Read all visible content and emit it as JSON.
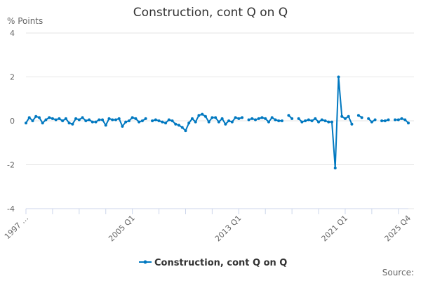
{
  "chart_data": {
    "type": "line",
    "title": "Construction, cont Q on Q",
    "ylabel": "% Points",
    "source_label": "Source:",
    "ylim": [
      -4,
      4
    ],
    "yticks": [
      4,
      2,
      0,
      -2,
      -4
    ],
    "grid": true,
    "legend_position": "bottom",
    "x_start": "1997 Q1",
    "x_end": "2025 Q4",
    "xtick_labels": [
      {
        "index": 0,
        "label": "1997 …"
      },
      {
        "index": 32,
        "label": "2005 Q1"
      },
      {
        "index": 64,
        "label": "2013 Q1"
      },
      {
        "index": 96,
        "label": "2021 Q1"
      },
      {
        "index": 115,
        "label": "2025 Q4"
      }
    ],
    "series": [
      {
        "name": "Construction, cont Q on Q",
        "color": "#0078c0",
        "values": [
          -0.1,
          0.15,
          0.0,
          0.2,
          0.15,
          -0.1,
          0.05,
          0.15,
          0.1,
          0.05,
          0.1,
          0.0,
          0.1,
          -0.1,
          -0.15,
          0.1,
          0.05,
          0.15,
          0.0,
          0.05,
          -0.05,
          -0.05,
          0.05,
          0.05,
          -0.2,
          0.1,
          0.05,
          0.05,
          0.1,
          -0.25,
          -0.05,
          0.0,
          0.15,
          0.1,
          -0.05,
          0.0,
          0.1,
          null,
          0.0,
          0.05,
          0.0,
          -0.05,
          -0.1,
          0.05,
          0.0,
          -0.15,
          -0.2,
          -0.3,
          -0.45,
          -0.1,
          0.1,
          -0.05,
          0.25,
          0.3,
          0.2,
          -0.05,
          0.15,
          0.15,
          -0.05,
          0.1,
          -0.15,
          0.0,
          -0.05,
          0.15,
          0.1,
          0.15,
          null,
          0.05,
          0.1,
          0.05,
          0.1,
          0.15,
          0.1,
          -0.05,
          0.15,
          0.05,
          0.0,
          0.0,
          null,
          0.25,
          0.1,
          null,
          0.1,
          -0.05,
          0.0,
          0.05,
          0.0,
          0.1,
          -0.05,
          0.05,
          0.0,
          -0.05,
          -0.05,
          -2.15,
          2.0,
          0.2,
          0.1,
          0.2,
          -0.15,
          null,
          0.25,
          0.15,
          null,
          0.1,
          -0.05,
          0.05,
          null,
          0.0,
          0.0,
          0.05,
          null,
          0.05,
          0.05,
          0.1,
          0.05,
          -0.1
        ]
      }
    ]
  }
}
